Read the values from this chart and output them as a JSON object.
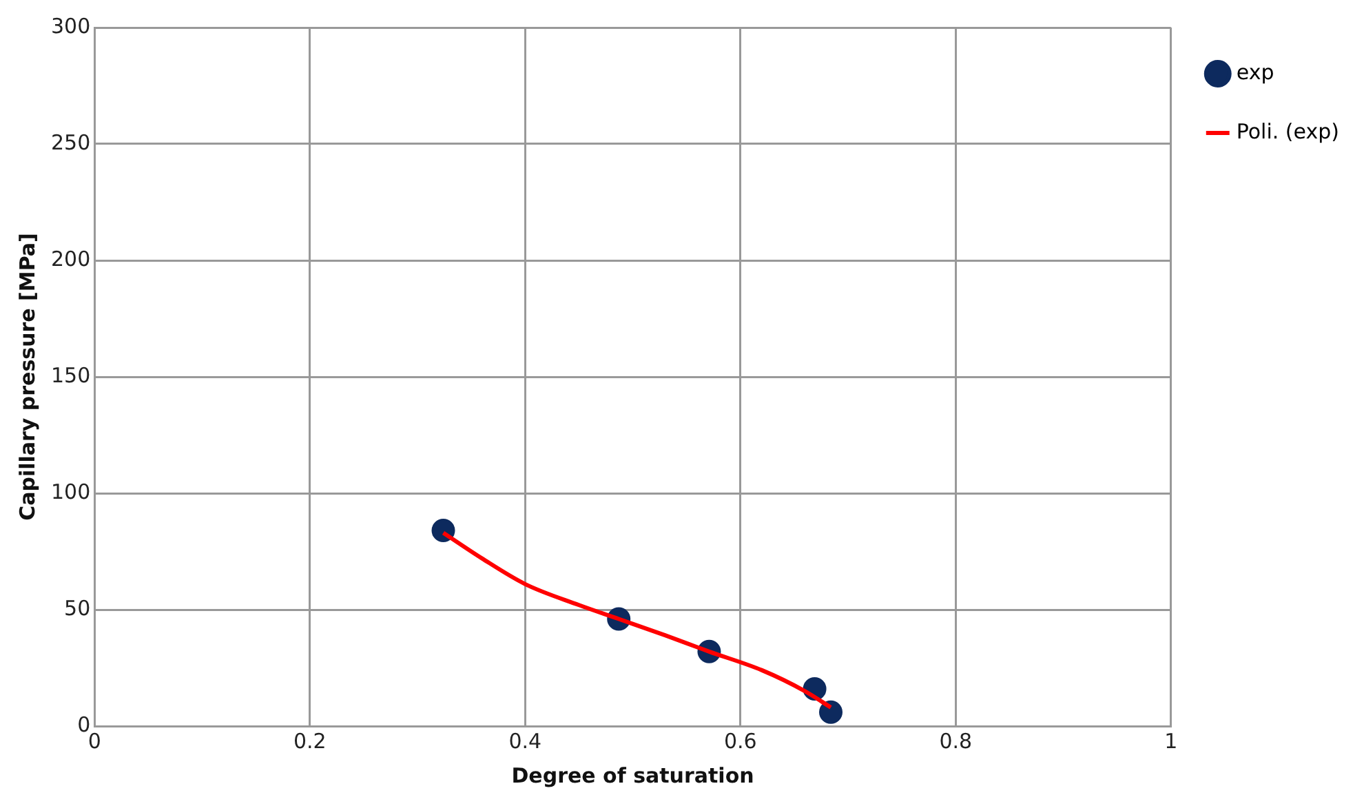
{
  "chart_data": {
    "type": "scatter",
    "xlabel": "Degree of saturation",
    "ylabel": "Capillary pressure [MPa]",
    "series": [
      {
        "name": "exp",
        "type": "scatter",
        "color": "#0d2a5e",
        "x": [
          0.324,
          0.487,
          0.571,
          0.669,
          0.684
        ],
        "values": [
          84,
          46,
          32,
          16,
          6
        ],
        "marker": "circle"
      },
      {
        "name": "Poli. (exp)",
        "type": "line",
        "color": "#ff0000",
        "x": [
          0.324,
          0.36,
          0.4,
          0.45,
          0.487,
          0.53,
          0.571,
          0.62,
          0.66,
          0.684
        ],
        "values": [
          83,
          72,
          61,
          52,
          46,
          39,
          32,
          24,
          15,
          8
        ],
        "marker": "none"
      }
    ],
    "xlim": [
      0,
      1
    ],
    "xticks": [
      0,
      0.2,
      0.4,
      0.6,
      0.8,
      1
    ],
    "ylim": [
      0,
      300
    ],
    "yticks": [
      0,
      50,
      100,
      150,
      200,
      250,
      300
    ],
    "grid": true,
    "legend": "top right"
  }
}
